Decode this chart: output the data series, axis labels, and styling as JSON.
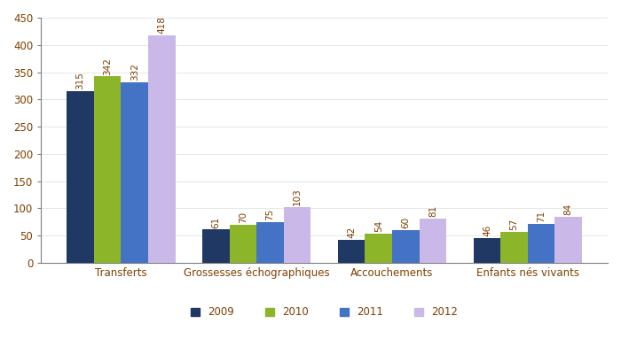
{
  "categories": [
    "Transferts",
    "Grossesses échographiques",
    "Accouchements",
    "Enfants nés vivants"
  ],
  "years": [
    "2009",
    "2010",
    "2011",
    "2012"
  ],
  "values": {
    "2009": [
      315,
      61,
      42,
      46
    ],
    "2010": [
      342,
      70,
      54,
      57
    ],
    "2011": [
      332,
      75,
      60,
      71
    ],
    "2012": [
      418,
      103,
      81,
      84
    ]
  },
  "colors": {
    "2009": "#1F3864",
    "2010": "#8DB52A",
    "2011": "#4472C4",
    "2012": "#C9B8E8"
  },
  "ylim": [
    0,
    450
  ],
  "yticks": [
    0,
    50,
    100,
    150,
    200,
    250,
    300,
    350,
    400,
    450
  ],
  "bar_width": 0.2,
  "value_fontsize": 7.5,
  "label_fontsize": 8.5,
  "tick_fontsize": 8.5,
  "legend_fontsize": 8.5,
  "background_color": "#FFFFFF",
  "axis_color": "#7F7F7F",
  "label_color": "#7F3F00",
  "value_color": "#7F3F00"
}
